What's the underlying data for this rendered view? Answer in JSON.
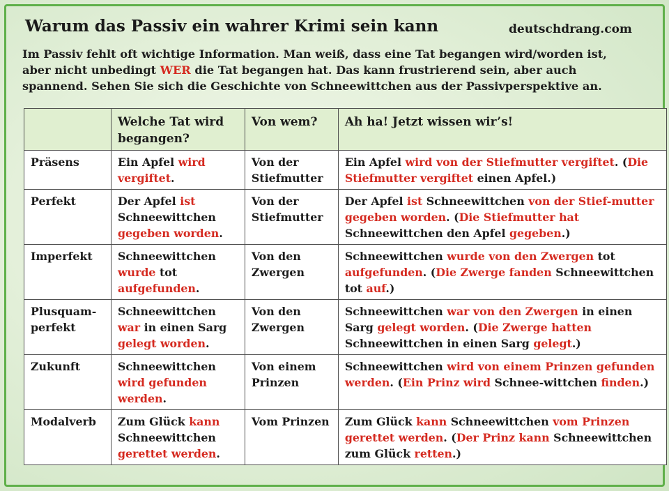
{
  "header": {
    "title": "Warum das Passiv ein wahrer Krimi sein kann",
    "site": "deutschdrang.com"
  },
  "intro": {
    "line1_a": "Im Passiv fehlt oft wichtige Information. Man weiß, dass eine Tat begangen wird/worden ist,",
    "line2_a": "aber nicht unbedingt ",
    "line2_red": "WER",
    "line2_b": " die Tat begangen hat.  Das kann frustrierend sein, aber auch",
    "line3": "spannend. Sehen Sie sich die Geschichte von Schneewittchen aus der Passivperspektive an."
  },
  "table": {
    "headers": {
      "col1": "",
      "col2": "Welche Tat wird begangen?",
      "col3": "Von wem?",
      "col4": "Ah ha!  Jetzt wissen wir’s!"
    },
    "rows": [
      {
        "tense": "Präsens",
        "tat": [
          [
            "Ein Apfel ",
            false
          ],
          [
            "wird vergiftet",
            true
          ],
          [
            ".",
            false
          ]
        ],
        "von": "Von der Stiefmutter",
        "aha": [
          [
            "Ein Apfel ",
            false
          ],
          [
            "wird von der Stiefmutter vergiftet",
            true
          ],
          [
            ". (",
            false
          ],
          [
            "Die Stiefmutter vergiftet",
            true
          ],
          [
            " einen Apfel.)",
            false
          ]
        ]
      },
      {
        "tense": "Perfekt",
        "tat": [
          [
            "Der Apfel ",
            false
          ],
          [
            "ist",
            true
          ],
          [
            " Schneewittchen ",
            false
          ],
          [
            "gegeben worden",
            true
          ],
          [
            ".",
            false
          ]
        ],
        "von": "Von der Stiefmutter",
        "aha": [
          [
            "Der Apfel ",
            false
          ],
          [
            "ist",
            true
          ],
          [
            " Schneewittchen ",
            false
          ],
          [
            "von der Stief-mutter gegeben worden",
            true
          ],
          [
            ". (",
            false
          ],
          [
            "Die Stiefmutter hat",
            true
          ],
          [
            " Schneewittchen den Apfel ",
            false
          ],
          [
            "gegeben",
            true
          ],
          [
            ".)",
            false
          ]
        ]
      },
      {
        "tense": "Imperfekt",
        "tat": [
          [
            "Schneewittchen ",
            false
          ],
          [
            "wurde",
            true
          ],
          [
            " tot ",
            false
          ],
          [
            "aufgefunden",
            true
          ],
          [
            ".",
            false
          ]
        ],
        "von": "Von den Zwergen",
        "aha": [
          [
            "Schneewittchen ",
            false
          ],
          [
            "wurde von den Zwergen",
            true
          ],
          [
            " tot ",
            false
          ],
          [
            "aufgefunden",
            true
          ],
          [
            ". (",
            false
          ],
          [
            "Die Zwerge fanden",
            true
          ],
          [
            " Schneewittchen tot ",
            false
          ],
          [
            "auf",
            true
          ],
          [
            ".)",
            false
          ]
        ]
      },
      {
        "tense": "Plusquam-perfekt",
        "tat": [
          [
            "Schneewittchen ",
            false
          ],
          [
            "war",
            true
          ],
          [
            " in einen Sarg ",
            false
          ],
          [
            "gelegt worden",
            true
          ],
          [
            ".",
            false
          ]
        ],
        "von": "Von den Zwergen",
        "aha": [
          [
            "Schneewittchen ",
            false
          ],
          [
            "war von den Zwergen",
            true
          ],
          [
            " in einen Sarg ",
            false
          ],
          [
            "gelegt worden",
            true
          ],
          [
            ". (",
            false
          ],
          [
            "Die Zwerge hatten",
            true
          ],
          [
            " Schneewittchen in einen Sarg ",
            false
          ],
          [
            "gelegt",
            true
          ],
          [
            ".)",
            false
          ]
        ]
      },
      {
        "tense": "Zukunft",
        "tat": [
          [
            "Schneewittchen ",
            false
          ],
          [
            "wird gefunden werden",
            true
          ],
          [
            ".",
            false
          ]
        ],
        "von": "Von einem Prinzen",
        "aha": [
          [
            "Schneewittchen ",
            false
          ],
          [
            "wird von einem Prinzen gefunden werden",
            true
          ],
          [
            ". (",
            false
          ],
          [
            "Ein Prinz wird",
            true
          ],
          [
            " Schnee-wittchen ",
            false
          ],
          [
            "finden",
            true
          ],
          [
            ".)",
            false
          ]
        ]
      },
      {
        "tense": "Modalverb",
        "tat": [
          [
            "Zum Glück ",
            false
          ],
          [
            "kann",
            true
          ],
          [
            " Schneewittchen ",
            false
          ],
          [
            "gerettet werden",
            true
          ],
          [
            ".",
            false
          ]
        ],
        "von": "Vom Prinzen",
        "aha": [
          [
            "Zum Glück ",
            false
          ],
          [
            "kann",
            true
          ],
          [
            " Schneewittchen ",
            false
          ],
          [
            "vom Prinzen gerettet werden",
            true
          ],
          [
            ". (",
            false
          ],
          [
            "Der Prinz kann",
            true
          ],
          [
            " Schneewittchen zum Glück ",
            false
          ],
          [
            "retten",
            true
          ],
          [
            ".)",
            false
          ]
        ]
      }
    ]
  },
  "colors": {
    "accent_red": "#d52a20",
    "border_green": "#5fb04a",
    "header_fill": "#e0efd0"
  }
}
